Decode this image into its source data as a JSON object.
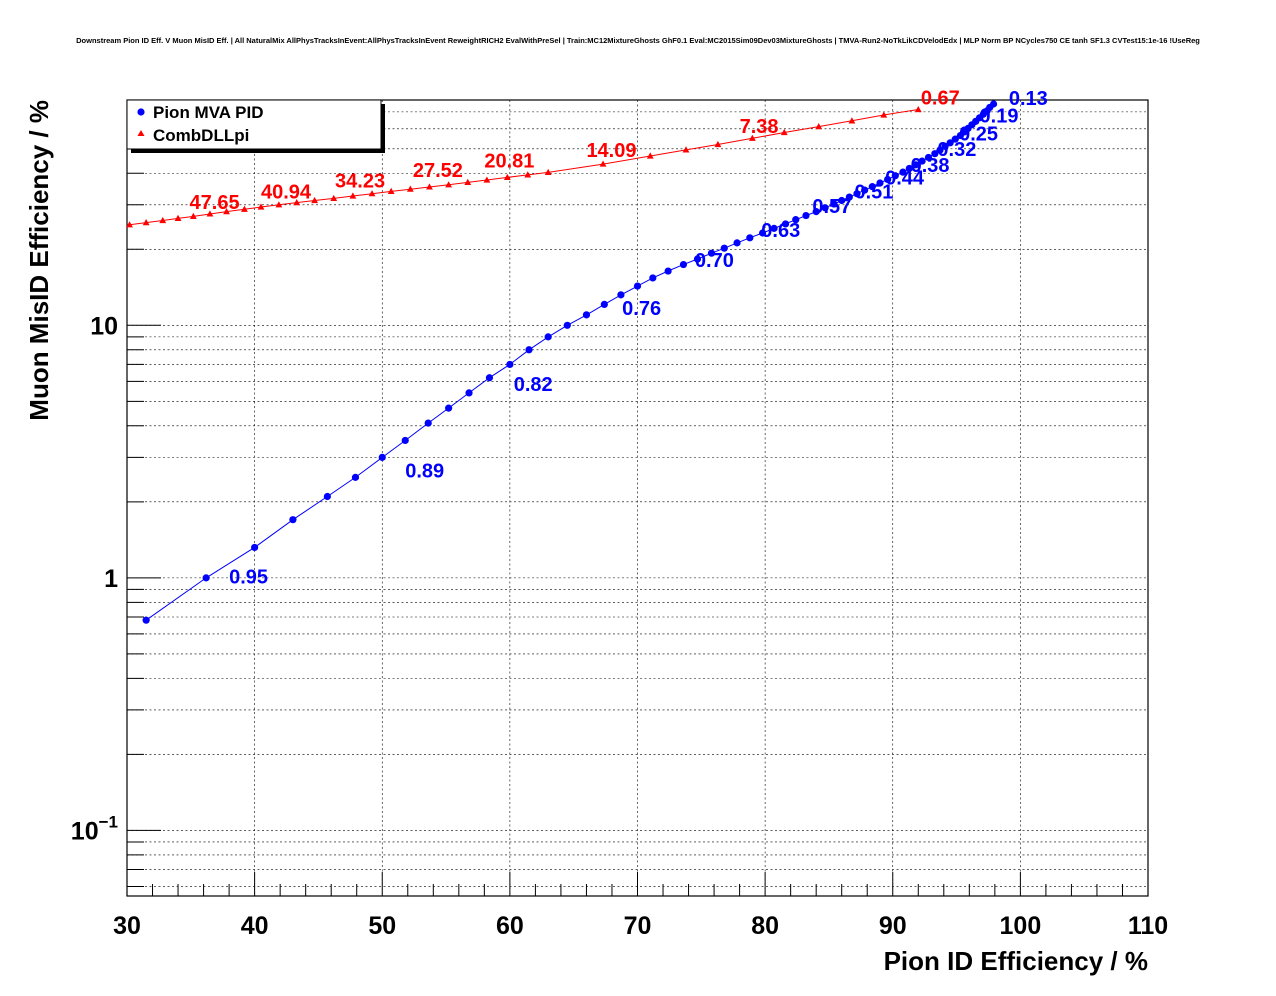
{
  "chart_data": {
    "type": "line",
    "title": "Downstream Pion ID Eff. V Muon MisID Eff. | All NaturalMix AllPhysTracksInEvent:AllPhysTracksInEvent ReweightRICH2 EvalWithPreSel | Train:MC12MixtureGhosts GhF0.1 Eval:MC2015Sim09Dev03MixtureGhosts | TMVA-Run2-NoTkLikCDVelodEdx | MLP Norm BP NCycles750 CE tanh SF1.3 CVTest15:1e-16 !UseReg",
    "xlabel": "Pion ID Efficiency / %",
    "ylabel": "Muon MisID Efficiency / %",
    "xlim": [
      30,
      110
    ],
    "ylim": [
      0.055,
      78
    ],
    "y_scale": "log",
    "grid": true,
    "legend_position": "top-left",
    "x_ticks": [
      "30",
      "40",
      "50",
      "60",
      "70",
      "80",
      "90",
      "100",
      "110"
    ],
    "y_ticks": [
      {
        "value": 10,
        "label": "10"
      },
      {
        "value": 1,
        "label": "1"
      }
    ],
    "y_tick_exp": {
      "value": 0.1,
      "base": "10",
      "exp": "−1"
    },
    "series": [
      {
        "name": "Pion MVA PID",
        "color": "#0000ff",
        "marker": "circle",
        "x": [
          31.5,
          36.2,
          40.0,
          43.0,
          45.7,
          47.9,
          50.0,
          51.8,
          53.6,
          55.2,
          56.8,
          58.4,
          60.0,
          61.5,
          63.0,
          64.5,
          66.0,
          67.4,
          68.7,
          70.0,
          71.2,
          72.4,
          73.6,
          74.7,
          75.8,
          76.8,
          77.8,
          78.8,
          79.8,
          80.7,
          81.6,
          82.4,
          83.2,
          84.0,
          84.7,
          85.4,
          86.0,
          86.6,
          87.2,
          87.8,
          88.4,
          89.0,
          89.6,
          90.2,
          90.8,
          91.3,
          91.8,
          92.3,
          92.8,
          93.3,
          93.7,
          94.1,
          94.5,
          94.9,
          95.3,
          95.6,
          95.9,
          96.2,
          96.5,
          96.8,
          97.1,
          97.4,
          97.6,
          97.9
        ],
        "y": [
          0.68,
          1.0,
          1.32,
          1.7,
          2.1,
          2.5,
          3.0,
          3.5,
          4.1,
          4.7,
          5.4,
          6.2,
          7.0,
          8.0,
          9.0,
          10.0,
          11.0,
          12.1,
          13.2,
          14.3,
          15.4,
          16.4,
          17.4,
          18.3,
          19.3,
          20.2,
          21.2,
          22.2,
          23.2,
          24.2,
          25.2,
          26.2,
          27.2,
          28.2,
          29.2,
          30.2,
          31.2,
          32.2,
          33.2,
          34.3,
          35.4,
          36.6,
          37.8,
          39.1,
          40.4,
          41.8,
          43.2,
          44.7,
          46.2,
          47.8,
          49.4,
          51.1,
          52.8,
          54.6,
          56.4,
          58.3,
          60.2,
          62.2,
          64.2,
          66.3,
          68.5,
          70.7,
          72.9,
          75.2
        ]
      },
      {
        "name": "CombDLLpi",
        "color": "#ff0000",
        "marker": "triangle",
        "x": [
          30.2,
          31.5,
          32.8,
          34.0,
          35.2,
          36.5,
          37.8,
          39.2,
          40.5,
          41.9,
          43.3,
          44.7,
          46.2,
          47.7,
          49.2,
          50.7,
          52.2,
          53.7,
          55.2,
          56.7,
          58.2,
          59.8,
          61.4,
          63.0,
          67.3,
          71.0,
          73.8,
          76.3,
          79.0,
          81.5,
          84.2,
          86.8,
          89.3,
          92.0
        ],
        "y": [
          25.0,
          25.5,
          26.0,
          26.5,
          27.0,
          27.6,
          28.2,
          28.8,
          29.4,
          30.0,
          30.6,
          31.2,
          31.8,
          32.5,
          33.2,
          33.9,
          34.6,
          35.3,
          36.0,
          36.8,
          37.6,
          38.5,
          39.4,
          40.3,
          43.5,
          46.8,
          49.5,
          52.0,
          55.0,
          58.0,
          61.2,
          64.5,
          68.0,
          71.5
        ]
      }
    ],
    "annotations": [
      {
        "text": "0.95",
        "x": 38.0,
        "y": 0.95,
        "color": "#0000ff"
      },
      {
        "text": "0.89",
        "x": 51.8,
        "y": 2.5,
        "color": "#0000ff"
      },
      {
        "text": "0.82",
        "x": 60.3,
        "y": 5.5,
        "color": "#0000ff"
      },
      {
        "text": "0.76",
        "x": 68.8,
        "y": 11.0,
        "color": "#0000ff"
      },
      {
        "text": "0.70",
        "x": 74.5,
        "y": 17.0,
        "color": "#0000ff"
      },
      {
        "text": "0.63",
        "x": 79.7,
        "y": 22.4,
        "color": "#0000ff"
      },
      {
        "text": "0.57",
        "x": 83.7,
        "y": 27.8,
        "color": "#0000ff"
      },
      {
        "text": "0.51",
        "x": 87.0,
        "y": 31.8,
        "color": "#0000ff"
      },
      {
        "text": "0.44",
        "x": 89.4,
        "y": 36.1,
        "color": "#0000ff"
      },
      {
        "text": "0.38",
        "x": 91.4,
        "y": 40.4,
        "color": "#0000ff"
      },
      {
        "text": "0.32",
        "x": 93.5,
        "y": 46.9,
        "color": "#0000ff"
      },
      {
        "text": "0.25",
        "x": 95.2,
        "y": 53.9,
        "color": "#0000ff"
      },
      {
        "text": "0.19",
        "x": 96.8,
        "y": 63.5,
        "color": "#0000ff"
      },
      {
        "text": "0.13",
        "x": 99.1,
        "y": 74.5,
        "color": "#0000ff"
      },
      {
        "text": "47.65",
        "x": 34.9,
        "y": 28.9,
        "color": "#ff0000"
      },
      {
        "text": "40.94",
        "x": 40.5,
        "y": 31.8,
        "color": "#ff0000"
      },
      {
        "text": "34.23",
        "x": 46.3,
        "y": 35.2,
        "color": "#ff0000"
      },
      {
        "text": "27.52",
        "x": 52.4,
        "y": 38.6,
        "color": "#ff0000"
      },
      {
        "text": "20.81",
        "x": 58.0,
        "y": 42.1,
        "color": "#ff0000"
      },
      {
        "text": "14.09",
        "x": 66.0,
        "y": 46.4,
        "color": "#ff0000"
      },
      {
        "text": "7.38",
        "x": 78.0,
        "y": 57.7,
        "color": "#ff0000"
      },
      {
        "text": "0.67",
        "x": 92.2,
        "y": 74.9,
        "color": "#ff0000"
      }
    ]
  }
}
